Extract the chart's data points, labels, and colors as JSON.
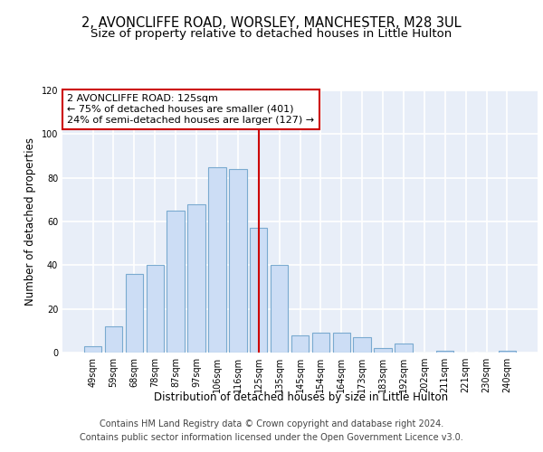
{
  "title": "2, AVONCLIFFE ROAD, WORSLEY, MANCHESTER, M28 3UL",
  "subtitle": "Size of property relative to detached houses in Little Hulton",
  "xlabel": "Distribution of detached houses by size in Little Hulton",
  "ylabel": "Number of detached properties",
  "footer_line1": "Contains HM Land Registry data © Crown copyright and database right 2024.",
  "footer_line2": "Contains public sector information licensed under the Open Government Licence v3.0.",
  "categories": [
    "49sqm",
    "59sqm",
    "68sqm",
    "78sqm",
    "87sqm",
    "97sqm",
    "106sqm",
    "116sqm",
    "125sqm",
    "135sqm",
    "145sqm",
    "154sqm",
    "164sqm",
    "173sqm",
    "183sqm",
    "192sqm",
    "202sqm",
    "211sqm",
    "221sqm",
    "230sqm",
    "240sqm"
  ],
  "values": [
    3,
    12,
    36,
    40,
    65,
    68,
    85,
    84,
    57,
    40,
    8,
    9,
    9,
    7,
    2,
    4,
    0,
    1,
    0,
    0,
    1
  ],
  "bar_color": "#ccddf5",
  "bar_edge_color": "#7aaad0",
  "vline_index": 8,
  "vline_color": "#cc0000",
  "annotation_text": "2 AVONCLIFFE ROAD: 125sqm\n← 75% of detached houses are smaller (401)\n24% of semi-detached houses are larger (127) →",
  "annotation_box_color": "#cc0000",
  "ylim": [
    0,
    120
  ],
  "yticks": [
    0,
    20,
    40,
    60,
    80,
    100,
    120
  ],
  "background_color": "#e8eef8",
  "grid_color": "#ffffff",
  "title_fontsize": 10.5,
  "subtitle_fontsize": 9.5,
  "xlabel_fontsize": 8.5,
  "ylabel_fontsize": 8.5,
  "tick_fontsize": 7,
  "footer_fontsize": 7,
  "ann_fontsize": 8
}
